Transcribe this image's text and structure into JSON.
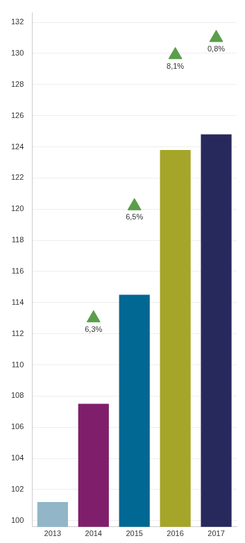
{
  "chart_data": {
    "type": "bar",
    "categories": [
      "2013",
      "2014",
      "2015",
      "2016",
      "2017"
    ],
    "values": [
      101.2,
      107.5,
      114.5,
      123.8,
      124.8
    ],
    "colors": [
      "#92b5c8",
      "#7f1f6b",
      "#006892",
      "#a5a529",
      "#27285c"
    ],
    "ylim": [
      99.6,
      132.6
    ],
    "yticks": [
      100,
      102,
      104,
      106,
      108,
      110,
      112,
      114,
      116,
      118,
      120,
      122,
      124,
      126,
      128,
      130,
      132
    ],
    "grid": true,
    "annotations": [
      {
        "x": "2014",
        "y": 113,
        "text": "6,3%"
      },
      {
        "x": "2015",
        "y": 120.2,
        "text": "6,5%"
      },
      {
        "x": "2016",
        "y": 129.9,
        "text": "8,1%"
      },
      {
        "x": "2017",
        "y": 131,
        "text": "0,8%"
      }
    ],
    "annotation_marker": "triangle",
    "annotation_color": "#5a9e4b"
  }
}
